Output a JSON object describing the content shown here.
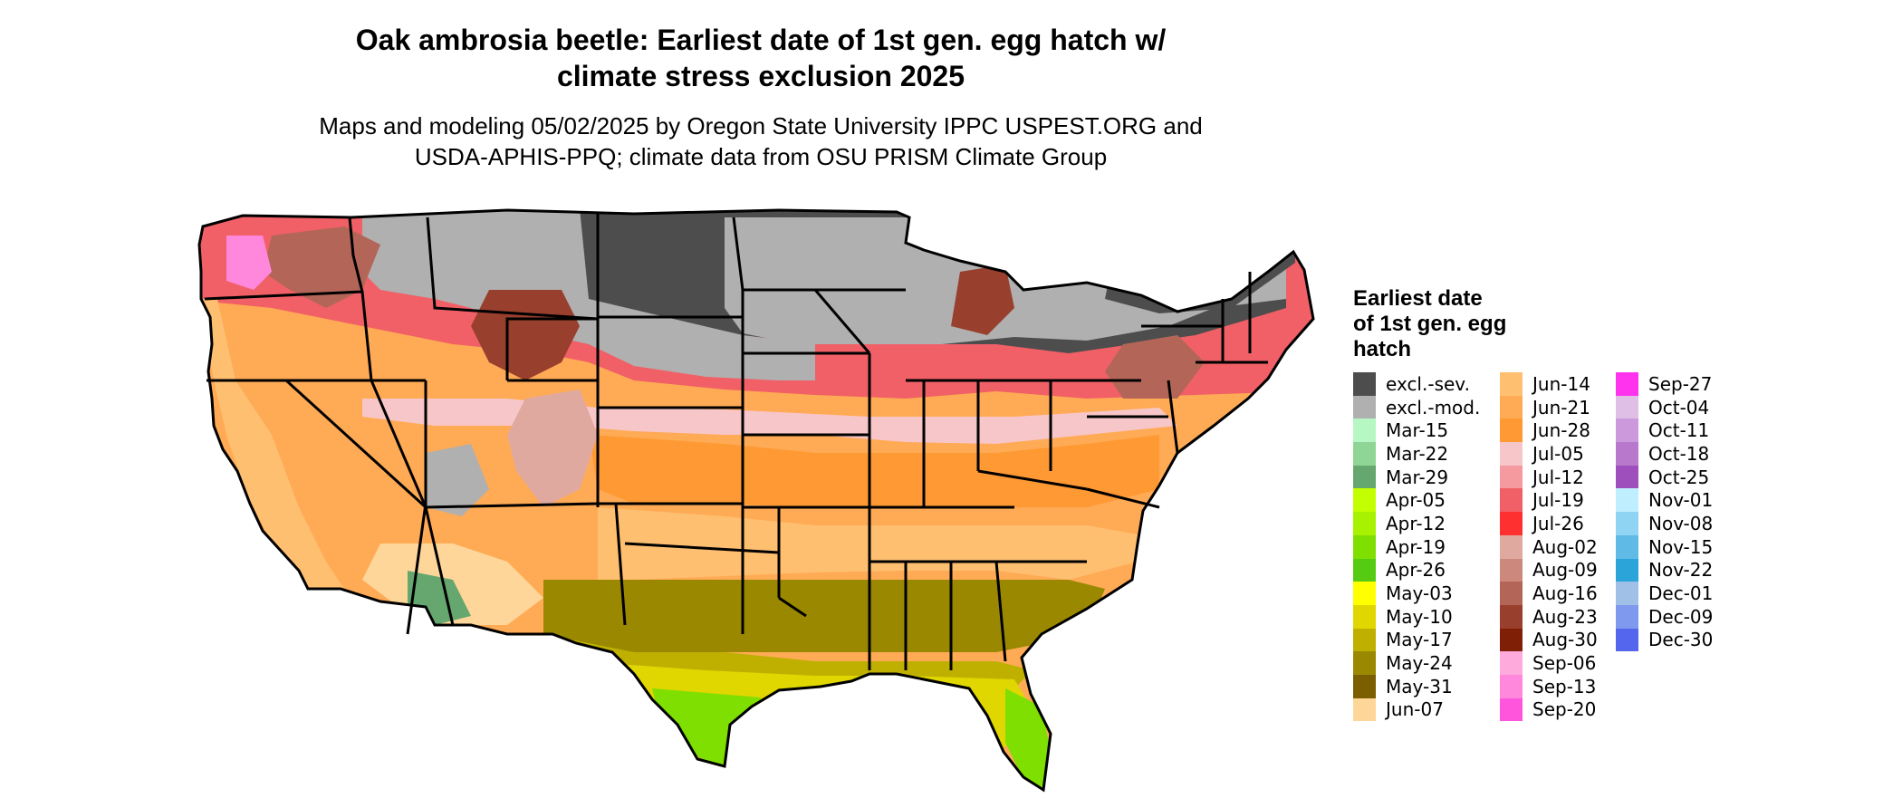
{
  "title": {
    "line1": "Oak ambrosia beetle: Earliest date of 1st gen. egg hatch w/",
    "line2": "climate stress exclusion 2025"
  },
  "subtitle": {
    "line1": "Maps and modeling 05/02/2025 by Oregon State University IPPC USPEST.ORG and",
    "line2": "USDA-APHIS-PPQ; climate data from OSU PRISM Climate Group"
  },
  "legend": {
    "title_lines": [
      "Earliest date",
      "of 1st gen. egg",
      "hatch"
    ],
    "columns": [
      [
        {
          "label": "excl.-sev.",
          "color": "#4d4d4d"
        },
        {
          "label": "excl.-mod.",
          "color": "#b0b0b0"
        },
        {
          "label": "Mar-15",
          "color": "#b6f7c4"
        },
        {
          "label": "Mar-22",
          "color": "#8fd696"
        },
        {
          "label": "Mar-29",
          "color": "#66a66f"
        },
        {
          "label": "Apr-05",
          "color": "#c3ff00"
        },
        {
          "label": "Apr-12",
          "color": "#a6f200"
        },
        {
          "label": "Apr-19",
          "color": "#7fdf00"
        },
        {
          "label": "Apr-26",
          "color": "#55cc11"
        },
        {
          "label": "May-03",
          "color": "#ffff00"
        },
        {
          "label": "May-10",
          "color": "#e0d600"
        },
        {
          "label": "May-17",
          "color": "#bfb000"
        },
        {
          "label": "May-24",
          "color": "#9a8800"
        },
        {
          "label": "May-31",
          "color": "#7a5e00"
        },
        {
          "label": "Jun-07",
          "color": "#ffd699"
        }
      ],
      [
        {
          "label": "Jun-14",
          "color": "#ffbf70"
        },
        {
          "label": "Jun-21",
          "color": "#ffaa55"
        },
        {
          "label": "Jun-28",
          "color": "#ff9933"
        },
        {
          "label": "Jul-05",
          "color": "#f7c6c8"
        },
        {
          "label": "Jul-12",
          "color": "#f59a9f"
        },
        {
          "label": "Jul-19",
          "color": "#f06066"
        },
        {
          "label": "Jul-26",
          "color": "#ff3030"
        },
        {
          "label": "Aug-02",
          "color": "#e0a9a0"
        },
        {
          "label": "Aug-09",
          "color": "#cc887c"
        },
        {
          "label": "Aug-16",
          "color": "#b36658"
        },
        {
          "label": "Aug-23",
          "color": "#993f2e"
        },
        {
          "label": "Aug-30",
          "color": "#7f1f05"
        },
        {
          "label": "Sep-06",
          "color": "#ffaadd"
        },
        {
          "label": "Sep-13",
          "color": "#ff88dd"
        },
        {
          "label": "Sep-20",
          "color": "#ff55dd"
        }
      ],
      [
        {
          "label": "Sep-27",
          "color": "#ff33ee"
        },
        {
          "label": "Oct-04",
          "color": "#e0bfe6"
        },
        {
          "label": "Oct-11",
          "color": "#cc99dd"
        },
        {
          "label": "Oct-18",
          "color": "#b878cc"
        },
        {
          "label": "Oct-25",
          "color": "#9f4fbb"
        },
        {
          "label": "Nov-01",
          "color": "#bfeeff"
        },
        {
          "label": "Nov-08",
          "color": "#8fd4f2"
        },
        {
          "label": "Nov-15",
          "color": "#5fbbe6"
        },
        {
          "label": "Nov-22",
          "color": "#2aa4d9"
        },
        {
          "label": "Dec-01",
          "color": "#a0c0e8"
        },
        {
          "label": "Dec-09",
          "color": "#7f99ee"
        },
        {
          "label": "Dec-30",
          "color": "#5566ee"
        }
      ]
    ]
  }
}
